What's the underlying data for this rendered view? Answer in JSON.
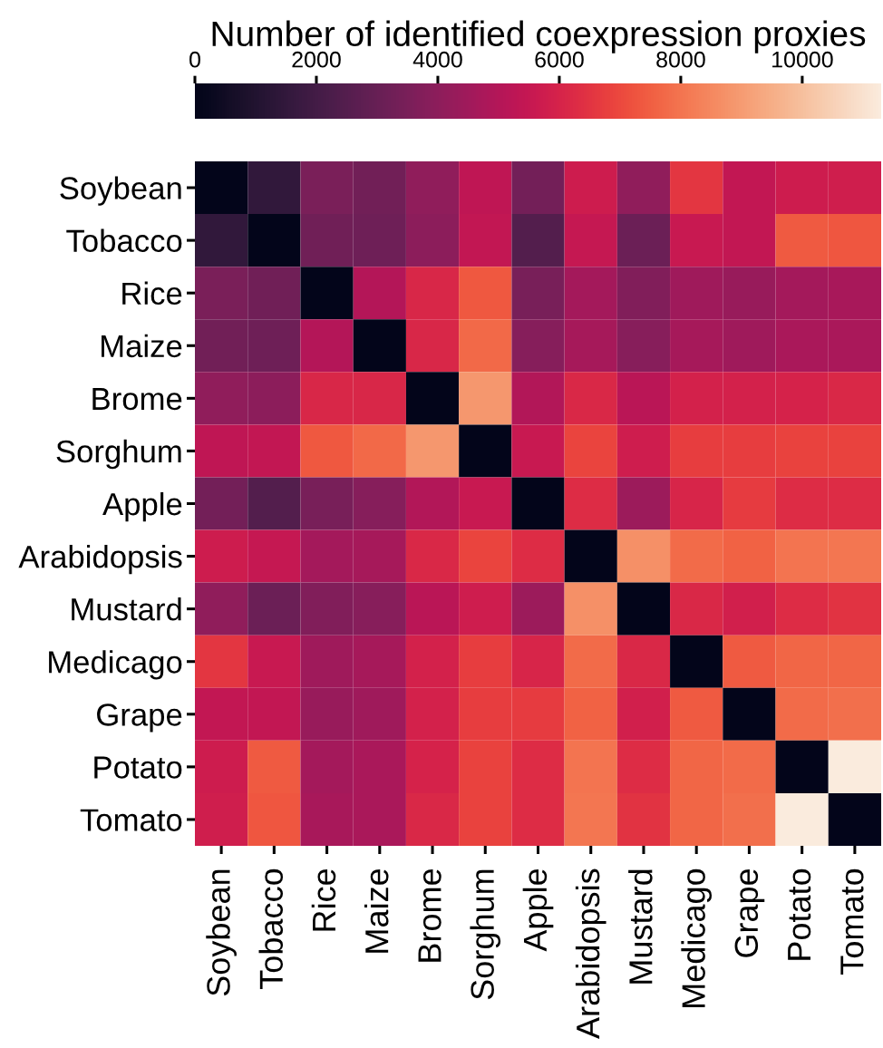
{
  "chart_data": {
    "type": "heatmap",
    "clabel": "Number of identified coexpression proxies",
    "categories": [
      "Soybean",
      "Tobacco",
      "Rice",
      "Maize",
      "Brome",
      "Sorghum",
      "Apple",
      "Arabidopsis",
      "Mustard",
      "Medicago",
      "Grape",
      "Potato",
      "Tomato"
    ],
    "y_categories": [
      "Soybean",
      "Tobacco",
      "Rice",
      "Maize",
      "Brome",
      "Sorghum",
      "Apple",
      "Arabidopsis",
      "Mustard",
      "Medicago",
      "Grape",
      "Potato",
      "Tomato"
    ],
    "cells": [
      [
        0,
        1500,
        3500,
        3300,
        4100,
        5300,
        3350,
        5700,
        4100,
        6550,
        5400,
        5700,
        5800
      ],
      [
        1500,
        0,
        3250,
        3200,
        4000,
        5400,
        2450,
        5500,
        3100,
        5600,
        5400,
        7400,
        7300
      ],
      [
        3500,
        3250,
        0,
        5000,
        6100,
        7350,
        3450,
        4600,
        3700,
        4500,
        4300,
        4600,
        4700
      ],
      [
        3300,
        3200,
        5000,
        0,
        6100,
        7750,
        3800,
        4650,
        3850,
        4650,
        4500,
        4750,
        4750
      ],
      [
        4100,
        4000,
        6100,
        6100,
        0,
        8900,
        4950,
        6150,
        5200,
        5950,
        5950,
        6000,
        6150
      ],
      [
        5300,
        5400,
        7350,
        7750,
        8900,
        0,
        5600,
        6900,
        5750,
        6750,
        6750,
        6850,
        6850
      ],
      [
        3350,
        2450,
        3450,
        3800,
        4950,
        5600,
        0,
        6300,
        4400,
        6050,
        6700,
        6300,
        6300
      ],
      [
        5700,
        5500,
        4600,
        4650,
        6150,
        6900,
        6300,
        0,
        8700,
        7800,
        7550,
        8000,
        8050
      ],
      [
        4100,
        3100,
        3700,
        3850,
        5200,
        5750,
        4400,
        8700,
        0,
        6150,
        5850,
        6300,
        6450
      ],
      [
        6550,
        5600,
        4500,
        4650,
        5950,
        6750,
        6050,
        7800,
        6150,
        0,
        7400,
        7650,
        7650
      ],
      [
        5400,
        5400,
        4300,
        4500,
        5950,
        6750,
        6700,
        7550,
        5850,
        7400,
        0,
        7800,
        7900
      ],
      [
        5700,
        7400,
        4600,
        4750,
        6000,
        6850,
        6300,
        8000,
        6300,
        7650,
        7800,
        0,
        11300
      ],
      [
        5800,
        7300,
        4700,
        4750,
        6150,
        6850,
        6300,
        8050,
        6450,
        7650,
        7900,
        11300,
        0
      ]
    ],
    "clim": [
      0,
      11300
    ],
    "cticks": [
      0,
      2000,
      4000,
      6000,
      8000,
      10000
    ]
  }
}
